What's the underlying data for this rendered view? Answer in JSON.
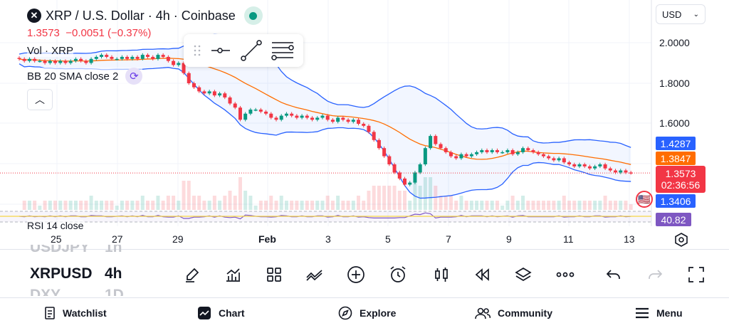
{
  "header": {
    "title": "XRP / U.S. Dollar · 4h · Coinbase",
    "last": "1.3573",
    "change": "−0.0051",
    "change_pct": "(−0.37%)",
    "currency": "USD"
  },
  "indicators": {
    "vol": "Vol · XRP",
    "bb": "BB 20 SMA close 2",
    "rsi": "RSI 14 close"
  },
  "price_axis": [
    "2.0000",
    "1.8000",
    "1.6000"
  ],
  "price_tags": {
    "bb_upper": "1.4287",
    "bb_basis": "1.3847",
    "last": "1.3573",
    "countdown": "02:36:56",
    "bb_lower": "1.3406",
    "rsi": "40.82"
  },
  "time_axis": [
    "25",
    "27",
    "29",
    "Feb",
    "3",
    "5",
    "7",
    "9",
    "11",
    "13"
  ],
  "symbol_picker": {
    "prev": "USDJPY",
    "prev_tf": "1h",
    "current": "XRPUSD",
    "current_tf": "4h",
    "next": "DXY",
    "next_tf": "1D"
  },
  "nav": [
    {
      "label": "Watchlist"
    },
    {
      "label": "Chart"
    },
    {
      "label": "Explore"
    },
    {
      "label": "Community"
    },
    {
      "label": "Menu"
    }
  ],
  "colors": {
    "up": "#089981",
    "down": "#f23645",
    "bb_upper": "#2962ff",
    "bb_basis": "#ff6d00",
    "rsi": "#7e57c2"
  },
  "chart_data": {
    "type": "candlestick",
    "timeframe": "4h",
    "start": "Jan 24 08:00",
    "ylim": [
      1.28,
      2.03
    ],
    "close": [
      1.92,
      1.91,
      1.92,
      1.91,
      1.91,
      1.9,
      1.91,
      1.9,
      1.91,
      1.9,
      1.91,
      1.92,
      1.91,
      1.9,
      1.92,
      1.93,
      1.94,
      1.93,
      1.92,
      1.92,
      1.93,
      1.92,
      1.93,
      1.92,
      1.94,
      1.93,
      1.92,
      1.94,
      1.93,
      1.91,
      1.89,
      1.9,
      1.85,
      1.8,
      1.78,
      1.76,
      1.75,
      1.76,
      1.74,
      1.75,
      1.73,
      1.7,
      1.68,
      1.62,
      1.65,
      1.67,
      1.67,
      1.66,
      1.65,
      1.63,
      1.62,
      1.64,
      1.65,
      1.64,
      1.63,
      1.64,
      1.63,
      1.62,
      1.63,
      1.64,
      1.62,
      1.61,
      1.63,
      1.62,
      1.61,
      1.62,
      1.6,
      1.59,
      1.56,
      1.52,
      1.48,
      1.44,
      1.4,
      1.36,
      1.33,
      1.3,
      1.31,
      1.36,
      1.4,
      1.48,
      1.54,
      1.5,
      1.48,
      1.46,
      1.44,
      1.43,
      1.45,
      1.44,
      1.45,
      1.46,
      1.47,
      1.46,
      1.47,
      1.46,
      1.46,
      1.47,
      1.45,
      1.46,
      1.48,
      1.47,
      1.46,
      1.45,
      1.44,
      1.43,
      1.42,
      1.43,
      1.41,
      1.4,
      1.39,
      1.4,
      1.39,
      1.38,
      1.39,
      1.4,
      1.38,
      1.37,
      1.36,
      1.37,
      1.36,
      1.3573
    ]
  }
}
